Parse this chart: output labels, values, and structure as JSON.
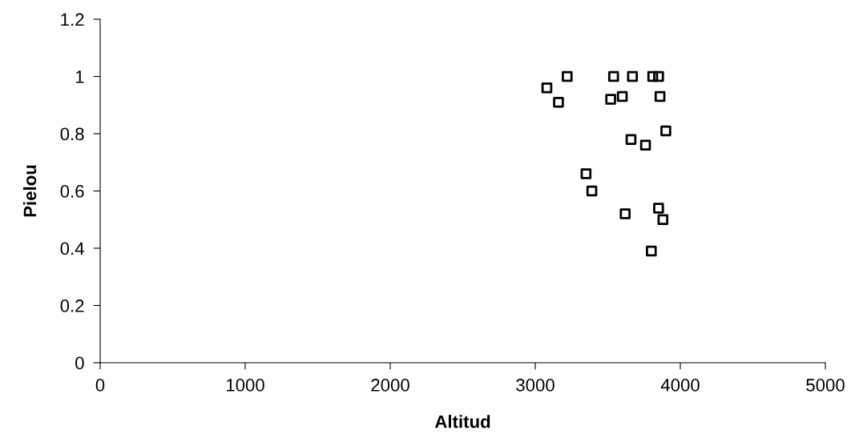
{
  "chart_data": {
    "type": "scatter",
    "xlabel": "Altitud",
    "ylabel": "Pielou",
    "x": [
      3080,
      3220,
      3160,
      3540,
      3670,
      3810,
      3850,
      3520,
      3600,
      3860,
      3900,
      3660,
      3760,
      3350,
      3390,
      3620,
      3850,
      3880,
      3800
    ],
    "series": [
      {
        "color": "#000000",
        "values": [
          0.96,
          1.0,
          0.91,
          1.0,
          1.0,
          1.0,
          1.0,
          0.92,
          0.93,
          0.93,
          0.81,
          0.78,
          0.76,
          0.66,
          0.6,
          0.52,
          0.54,
          0.5,
          0.39
        ]
      }
    ],
    "xlim": [
      0,
      5000
    ],
    "xticks": [
      0,
      1000,
      2000,
      3000,
      4000,
      5000
    ],
    "ylim": [
      0,
      1.2
    ],
    "yticks": [
      0,
      0.2,
      0.4,
      0.6,
      0.8,
      1,
      1.2
    ],
    "marker": "square",
    "grid": false,
    "legend": false
  }
}
